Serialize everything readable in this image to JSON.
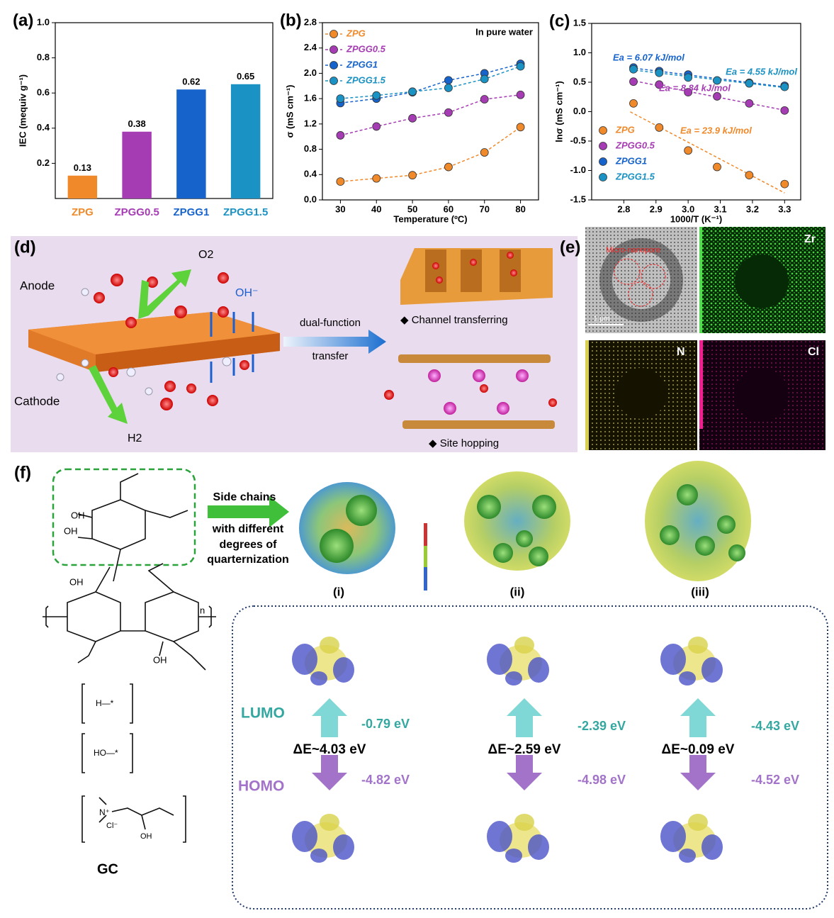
{
  "chart_data": [
    {
      "type": "bar",
      "panel": "(a)",
      "ylabel": "IEC (mequiv g⁻¹)",
      "categories": [
        "ZPG",
        "ZPGG0.5",
        "ZPGG1",
        "ZPGG1.5"
      ],
      "values": [
        0.13,
        0.38,
        0.62,
        0.65
      ],
      "colors": [
        "#f0892a",
        "#a63cb4",
        "#1763cc",
        "#1b92c4"
      ],
      "ylim": [
        0,
        1.0
      ],
      "yticks": [
        0.2,
        0.4,
        0.6,
        0.8,
        {
          "value": 1.0,
          "label": "1.0"
        }
      ],
      "grid": false
    },
    {
      "type": "line",
      "panel": "(b)",
      "annotation": "In pure water",
      "xlabel": "Temperature (ºC)",
      "ylabel": "σ (mS cm⁻¹)",
      "x": [
        30,
        40,
        50,
        60,
        70,
        80
      ],
      "xlim": [
        25,
        85
      ],
      "xticks": [
        30,
        40,
        50,
        60,
        70,
        80
      ],
      "ylim": [
        0,
        2.8
      ],
      "yticks": [
        {
          "value": 0,
          "label": "0.0"
        },
        0.4,
        0.8,
        1.2,
        1.6,
        {
          "value": 2,
          "label": "2.0"
        },
        2.4,
        2.8
      ],
      "legend": "upper left",
      "series": [
        {
          "name": "ZPG",
          "color": "#f0892a",
          "values": [
            0.29,
            0.34,
            0.39,
            0.52,
            0.75,
            1.15
          ]
        },
        {
          "name": "ZPGG0.5",
          "color": "#a63cb4",
          "values": [
            1.02,
            1.16,
            1.29,
            1.38,
            1.59,
            1.66
          ]
        },
        {
          "name": "ZPGG1",
          "color": "#1763cc",
          "values": [
            1.53,
            1.6,
            1.7,
            1.89,
            2.0,
            2.15
          ]
        },
        {
          "name": "ZPGG1.5",
          "color": "#1b92c4",
          "values": [
            1.6,
            1.65,
            1.71,
            1.77,
            1.91,
            2.11
          ]
        }
      ]
    },
    {
      "type": "scatter",
      "panel": "(c)",
      "fit": true,
      "xlabel": "1000/T (K⁻¹)",
      "ylabel": "lnσ (mS cm⁻¹)",
      "x": [
        2.83,
        2.91,
        3.0,
        3.09,
        3.19,
        3.3
      ],
      "xlim": [
        2.7,
        3.35
      ],
      "xticks": [
        2.8,
        2.9,
        {
          "value": 3,
          "label": "3.0"
        },
        3.1,
        3.2,
        3.3
      ],
      "ylim": [
        -1.5,
        1.5
      ],
      "yticks": [
        -1.5,
        {
          "value": -1,
          "label": "-1.0"
        },
        -0.5,
        {
          "value": 0,
          "label": "0.0"
        },
        0.5,
        {
          "value": 1,
          "label": "1.0"
        },
        1.5
      ],
      "legend": "lower left",
      "series": [
        {
          "name": "ZPG",
          "color": "#f0892a",
          "values": [
            0.14,
            -0.27,
            -0.66,
            -0.94,
            -1.08,
            -1.23
          ]
        },
        {
          "name": "ZPGG0.5",
          "color": "#a63cb4",
          "values": [
            0.51,
            0.46,
            0.33,
            0.26,
            0.14,
            0.02
          ]
        },
        {
          "name": "ZPGG1",
          "color": "#1763cc",
          "values": [
            0.75,
            0.69,
            0.63,
            0.53,
            0.49,
            0.44
          ]
        },
        {
          "name": "ZPGG1.5",
          "color": "#1b92c4",
          "values": [
            0.72,
            0.66,
            0.58,
            0.53,
            0.48,
            0.42
          ]
        }
      ],
      "annotations": [
        {
          "text": "Ea = 6.07 kJ/mol",
          "color": "#1763cc"
        },
        {
          "text": "Ea = 4.55 kJ/mol",
          "color": "#1b92c4"
        },
        {
          "text": "Ea = 8.84 kJ/mol",
          "color": "#a63cb4"
        },
        {
          "text": "Ea = 23.9 kJ/mol",
          "color": "#f0892a"
        }
      ]
    }
  ],
  "panel_d": {
    "label": "(d)",
    "o2": "O2",
    "anode": "Anode",
    "oh": "OH⁻",
    "cathode": "Cathode",
    "h2": "H2",
    "arrow_top": "dual-function",
    "arrow_bottom": "transfer",
    "channel": "Channel transferring",
    "hopping": "Site hopping"
  },
  "panel_e": {
    "label": "(e)",
    "pore": "Micro-nanopore",
    "scale": "1 μm",
    "zr": "Zr",
    "n": "N",
    "cl": "Cl"
  },
  "panel_f": {
    "label": "(f)",
    "side": [
      "Side chains",
      "with different",
      "degrees of",
      "quarternization"
    ],
    "models": [
      "(i)",
      "(ii)",
      "(iii)"
    ],
    "lumo": "LUMO",
    "homo": "HOMO",
    "gaps": [
      "ΔE~4.03 eV",
      "ΔE~2.59 eV",
      "ΔE~0.09 eV"
    ],
    "lumo_e": [
      "-0.79 eV",
      "-2.39 eV",
      "-4.43 eV"
    ],
    "homo_e": [
      "-4.82 eV",
      "-4.98 eV",
      "-4.52 eV"
    ],
    "groups": [
      "H—*",
      "HO—*"
    ],
    "n_group": "N⁺",
    "cl": "Cl⁻",
    "oh": "OH",
    "gc": "GC",
    "n": "n"
  }
}
